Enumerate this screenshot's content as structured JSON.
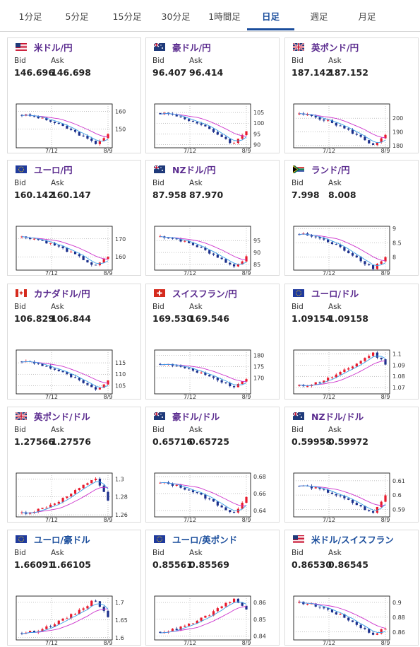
{
  "tabs": [
    {
      "label": "1分足",
      "active": false
    },
    {
      "label": "5分足",
      "active": false
    },
    {
      "label": "15分足",
      "active": false
    },
    {
      "label": "30分足",
      "active": false
    },
    {
      "label": "1時間足",
      "active": false
    },
    {
      "label": "日足",
      "active": true
    },
    {
      "label": "週足",
      "active": false
    },
    {
      "label": "月足",
      "active": false
    }
  ],
  "labels": {
    "bid": "Bid",
    "ask": "Ask"
  },
  "colors": {
    "up": "#e8192c",
    "down": "#1b2f8c",
    "ma_fast": "#3aa0e8",
    "ma_slow": "#cc33cc",
    "title_purple": "#5b2c8f",
    "title_blue": "#1a4d9c",
    "active_tab": "#1a4d9c"
  },
  "pairs": [
    {
      "name": "米ドル/円",
      "flag": "us-jp-flag-icon",
      "bid": "146.696",
      "ask": "146.698",
      "chart_data": {
        "type": "candlestick",
        "x_ticks": [
          "7/12",
          "8/9"
        ],
        "y_ticks": [
          "160",
          "150"
        ],
        "ylim": [
          139.4,
          164.2
        ],
        "start": 157.9,
        "end": 146.7,
        "low": 141.7
      }
    },
    {
      "name": "豪ドル/円",
      "flag": "au-jp-flag-icon",
      "bid": "96.407",
      "ask": "96.414",
      "chart_data": {
        "type": "candlestick",
        "x_ticks": [
          "7/12",
          "8/9"
        ],
        "y_ticks": [
          "105",
          "100",
          "95",
          "90"
        ],
        "ylim": [
          88.5,
          109.0
        ],
        "start": 104.7,
        "end": 96.4,
        "low": 90.2
      }
    },
    {
      "name": "英ポンド/円",
      "flag": "gb-jp-flag-icon",
      "bid": "187.142",
      "ask": "187.152",
      "chart_data": {
        "type": "candlestick",
        "x_ticks": [
          "7/12",
          "8/9"
        ],
        "y_ticks": [
          "200",
          "190",
          "180"
        ],
        "ylim": [
          178.4,
          210.4
        ],
        "start": 202.8,
        "end": 187.1,
        "low": 180.5
      }
    },
    {
      "name": "ユーロ/円",
      "flag": "eu-jp-flag-icon",
      "bid": "160.142",
      "ask": "160.147",
      "chart_data": {
        "type": "candlestick",
        "x_ticks": [
          "7/12",
          "8/9"
        ],
        "y_ticks": [
          "170",
          "160"
        ],
        "ylim": [
          152.6,
          177.0
        ],
        "start": 171.0,
        "end": 160.1,
        "low": 154.5
      }
    },
    {
      "name": "NZドル/円",
      "flag": "nz-jp-flag-icon",
      "bid": "87.958",
      "ask": "87.970",
      "chart_data": {
        "type": "candlestick",
        "x_ticks": [
          "7/12",
          "8/9"
        ],
        "y_ticks": [
          "95",
          "90",
          "85"
        ],
        "ylim": [
          82.6,
          101.0
        ],
        "start": 96.7,
        "end": 87.96,
        "low": 84.0
      }
    },
    {
      "name": "ランド/円",
      "flag": "za-jp-flag-icon",
      "bid": "7.998",
      "ask": "8.008",
      "chart_data": {
        "type": "candlestick",
        "x_ticks": [
          "7/12",
          "8/9"
        ],
        "y_ticks": [
          "9",
          "8.5",
          "8"
        ],
        "ylim": [
          7.54,
          9.08
        ],
        "start": 8.8,
        "end": 8.0,
        "low": 7.6
      }
    },
    {
      "name": "カナダドル/円",
      "flag": "ca-jp-flag-icon",
      "bid": "106.829",
      "ask": "106.844",
      "chart_data": {
        "type": "candlestick",
        "x_ticks": [
          "7/12",
          "8/9"
        ],
        "y_ticks": [
          "115",
          "110",
          "105"
        ],
        "ylim": [
          101.4,
          120.6
        ],
        "start": 115.6,
        "end": 106.8,
        "low": 103.0
      }
    },
    {
      "name": "スイスフラン/円",
      "flag": "ch-jp-flag-icon",
      "bid": "169.530",
      "ask": "169.546",
      "chart_data": {
        "type": "candlestick",
        "x_ticks": [
          "7/12",
          "8/9"
        ],
        "y_ticks": [
          "180",
          "175",
          "170"
        ],
        "ylim": [
          163.0,
          182.4
        ],
        "start": 176.2,
        "end": 169.5,
        "low": 166.0
      }
    },
    {
      "name": "ユーロ/ドル",
      "flag": "eu-us-flag-icon",
      "bid": "1.09154",
      "ask": "1.09158",
      "chart_data": {
        "type": "candlestick",
        "x_ticks": [
          "7/12",
          "8/9"
        ],
        "y_ticks": [
          "1.1",
          "1.09",
          "1.08",
          "1.07"
        ],
        "ylim": [
          1.0645,
          1.1033
        ],
        "start": 1.0715,
        "end": 1.0915,
        "high": 1.1008
      }
    },
    {
      "name": "英ポンド/ドル",
      "flag": "gb-us-flag-icon",
      "bid": "1.27566",
      "ask": "1.27576",
      "chart_data": {
        "type": "candlestick",
        "x_ticks": [
          "7/12",
          "8/9"
        ],
        "y_ticks": [
          "1.3",
          "1.28",
          "1.26"
        ],
        "ylim": [
          1.2577,
          1.3065
        ],
        "start": 1.262,
        "end": 1.2757,
        "high": 1.3018
      }
    },
    {
      "name": "豪ドル/ドル",
      "flag": "au-us-flag-icon",
      "bid": "0.65716",
      "ask": "0.65725",
      "chart_data": {
        "type": "candlestick",
        "x_ticks": [
          "7/12",
          "8/9"
        ],
        "y_ticks": [
          "0.68",
          "0.66",
          "0.64"
        ],
        "ylim": [
          0.6325,
          0.6842
        ],
        "start": 0.6725,
        "end": 0.6572,
        "low": 0.6352
      }
    },
    {
      "name": "NZドル/ドル",
      "flag": "nz-us-flag-icon",
      "bid": "0.59958",
      "ask": "0.59972",
      "chart_data": {
        "type": "candlestick",
        "x_ticks": [
          "7/12",
          "8/9"
        ],
        "y_ticks": [
          "0.61",
          "0.6",
          "0.59"
        ],
        "ylim": [
          0.5847,
          0.6154
        ],
        "start": 0.6065,
        "end": 0.5996,
        "low": 0.5869
      }
    },
    {
      "name": "ユーロ/豪ドル",
      "flag": "eu-au-flag-icon",
      "bid": "1.66091",
      "ask": "1.66105",
      "chart_data": {
        "type": "candlestick",
        "x_ticks": [
          "7/12",
          "8/9"
        ],
        "y_ticks": [
          "1.7",
          "1.65",
          "1.6"
        ],
        "ylim": [
          1.5935,
          1.7177
        ],
        "start": 1.613,
        "end": 1.6609,
        "high": 1.7081
      }
    },
    {
      "name": "ユーロ/英ポンド",
      "flag": "eu-gb-flag-icon",
      "bid": "0.85561",
      "ask": "0.85569",
      "chart_data": {
        "type": "candlestick",
        "x_ticks": [
          "7/12",
          "8/9"
        ],
        "y_ticks": [
          "0.86",
          "0.85",
          "0.84"
        ],
        "ylim": [
          0.8377,
          0.8638
        ],
        "start": 0.8425,
        "end": 0.8556,
        "high": 0.8622
      }
    },
    {
      "name": "米ドル/スイスフラン",
      "flag": "us-ch-flag-icon",
      "bid": "0.86530",
      "ask": "0.86545",
      "chart_data": {
        "type": "candlestick",
        "x_ticks": [
          "7/12",
          "8/9"
        ],
        "y_ticks": [
          "0.9",
          "0.88",
          "0.86"
        ],
        "ylim": [
          0.8493,
          0.9085
        ],
        "start": 0.8995,
        "end": 0.8653,
        "low": 0.8565
      }
    }
  ]
}
